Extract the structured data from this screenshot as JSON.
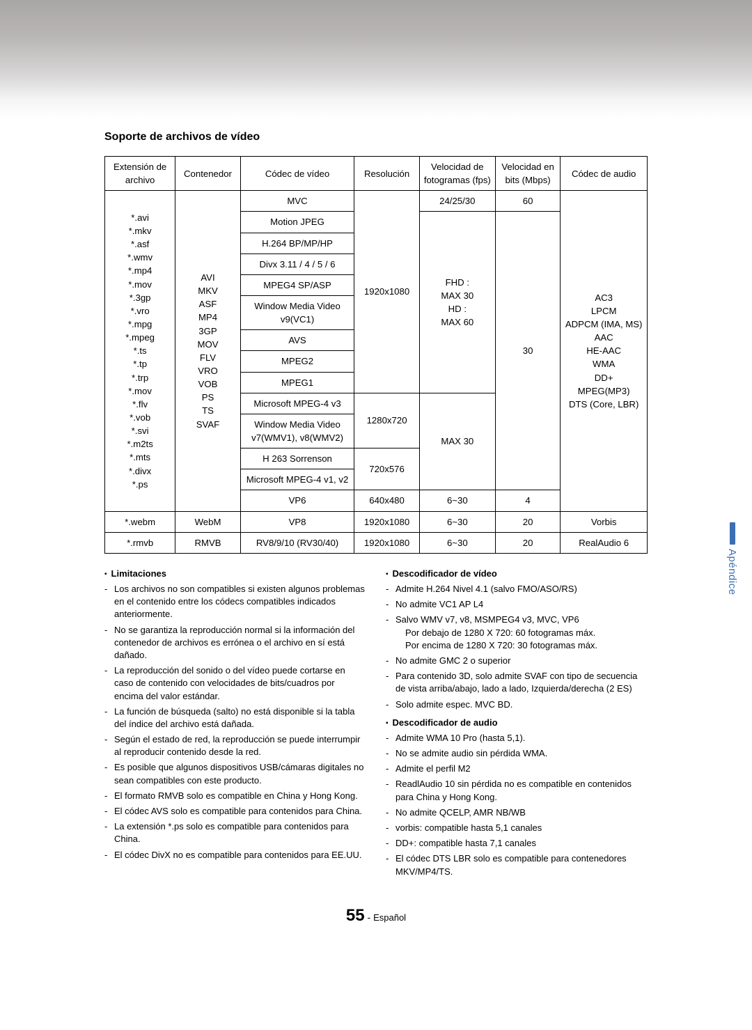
{
  "colors": {
    "tab_accent": "#3b6fb5",
    "text": "#000000",
    "border": "#000000",
    "bg": "#ffffff"
  },
  "section_title": "Soporte de archivos de vídeo",
  "side_tab": "Apéndice",
  "footer": {
    "page_number": "55",
    "separator": " - ",
    "language": "Español"
  },
  "table": {
    "headers": {
      "extension": "Extensión de archivo",
      "container": "Contenedor",
      "video_codec": "Códec de vídeo",
      "resolution": "Resolución",
      "fps": "Velocidad de fotogramas (fps)",
      "bitrate": "Velocidad en bits (Mbps)",
      "audio_codec": "Códec de audio"
    },
    "block1": {
      "extensions": "*.avi\n*.mkv\n*.asf\n*.wmv\n*.mp4\n*.mov\n*.3gp\n*.vro\n*.mpg\n*.mpeg\n*.ts\n*.tp\n*.trp\n*.mov\n*.flv\n*.vob\n*.svi\n*.m2ts\n*.mts\n*.divx\n*.ps",
      "containers": "AVI\nMKV\nASF\nMP4\n3GP\nMOV\nFLV\nVRO\nVOB\nPS\nTS\nSVAF",
      "audio_codecs": "AC3\nLPCM\nADPCM (IMA, MS)\nAAC\nHE-AAC\nWMA\nDD+\nMPEG(MP3)\nDTS (Core, LBR)",
      "rows": {
        "r1": {
          "codec": "MVC",
          "res": "1920x1080",
          "fps": "24/25/30",
          "bit": "60"
        },
        "r2": {
          "codec": "Motion JPEG"
        },
        "r3": {
          "codec": "H.264 BP/MP/HP"
        },
        "r4": {
          "codec": "Divx 3.11 / 4 / 5 / 6"
        },
        "r5": {
          "codec": "MPEG4 SP/ASP"
        },
        "r6": {
          "codec": "Window Media Video v9(VC1)"
        },
        "r7": {
          "codec": "AVS"
        },
        "r8": {
          "codec": "MPEG2"
        },
        "r9": {
          "codec": "MPEG1"
        },
        "fps_main": "FHD :\nMAX 30\nHD :\nMAX 60",
        "bit_main": "30",
        "r10": {
          "codec": "Microsoft MPEG-4 v3",
          "res": "1280x720",
          "fps": "MAX 30"
        },
        "r11": {
          "codec": "Window Media Video v7(WMV1), v8(WMV2)"
        },
        "r12": {
          "codec": "H 263 Sorrenson",
          "res": "720x576"
        },
        "r13": {
          "codec": "Microsoft MPEG-4 v1, v2"
        },
        "r14": {
          "codec": "VP6",
          "res": "640x480",
          "fps": "6~30",
          "bit": "4"
        }
      }
    },
    "row_webm": {
      "ext": "*.webm",
      "cont": "WebM",
      "codec": "VP8",
      "res": "1920x1080",
      "fps": "6~30",
      "bit": "20",
      "aud": "Vorbis"
    },
    "row_rmvb": {
      "ext": "*.rmvb",
      "cont": "RMVB",
      "codec": "RV8/9/10 (RV30/40)",
      "res": "1920x1080",
      "fps": "6~30",
      "bit": "20",
      "aud": "RealAudio 6"
    }
  },
  "notes": {
    "left": {
      "heading": "Limitaciones",
      "items": [
        "Los archivos no son compatibles si existen algunos problemas en el contenido entre los códecs compatibles indicados anteriormente.",
        "No se garantiza la reproducción normal si la información del contenedor de archivos es errónea o el archivo en sí está dañado.",
        "La reproducción del sonido o del vídeo puede cortarse en caso de contenido con velocidades de bits/cuadros por encima del valor estándar.",
        "La función de búsqueda (salto) no está disponible si la tabla del índice del archivo está dañada.",
        "Según el estado de red, la reproducción se puede interrumpir al reproducir contenido desde la red.",
        "Es posible que algunos dispositivos USB/cámaras digitales no sean compatibles con este producto.",
        "El formato RMVB solo es compatible en China y Hong Kong.",
        "El códec AVS solo es compatible para contenidos para China.",
        "La extensión *.ps solo es compatible para contenidos para China.",
        "El códec DivX no es compatible para contenidos para EE.UU."
      ]
    },
    "right_video": {
      "heading": "Descodificador de vídeo",
      "items": [
        "Admite H.264 Nivel 4.1 (salvo FMO/ASO/RS)",
        "No admite VC1 AP L4",
        "Salvo WMV v7, v8, MSMPEG4 v3, MVC, VP6\nPor debajo de 1280 X 720: 60 fotogramas máx.\nPor encima de 1280 X 720: 30 fotogramas máx.",
        "No admite GMC 2 o superior",
        "Para contenido 3D, solo admite SVAF con tipo de secuencia de vista arriba/abajo, lado a lado, Izquierda/derecha (2 ES)",
        "Solo admite espec. MVC BD."
      ]
    },
    "right_audio": {
      "heading": "Descodificador de audio",
      "items": [
        "Admite WMA 10 Pro (hasta 5,1).",
        "No se admite audio sin pérdida WMA.",
        "Admite el perfil M2",
        "ReadlAudio 10 sin pérdida no es compatible en contenidos para China y Hong Kong.",
        "No admite QCELP, AMR NB/WB",
        "vorbis: compatible hasta 5,1 canales",
        "DD+: compatible hasta 7,1 canales",
        "El códec DTS LBR solo es compatible para contenedores MKV/MP4/TS."
      ]
    }
  }
}
